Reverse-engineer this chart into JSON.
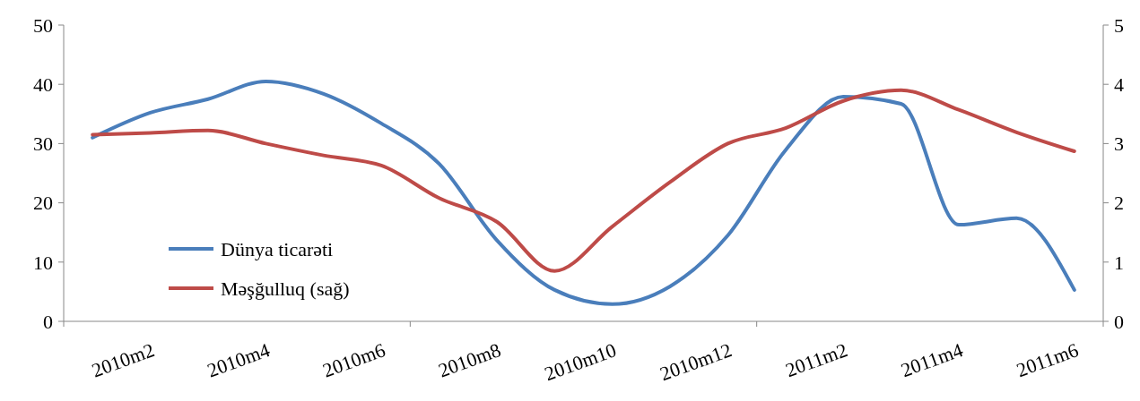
{
  "chart_data": {
    "type": "line",
    "categories": [
      null,
      "2010m2",
      null,
      "2010m4",
      null,
      "2010m6",
      null,
      "2010m8",
      null,
      "2010m10",
      null,
      "2010m12",
      null,
      "2011m2",
      null,
      "2011m4",
      null,
      "2011m6"
    ],
    "series": [
      {
        "name": "Dünya ticarəti",
        "color": "#4a7ebb",
        "values": [
          31,
          35.2,
          37.5,
          40.5,
          38.4,
          33.4,
          26.6,
          13.7,
          5.3,
          2.9,
          5.9,
          14.5,
          28.9,
          37.9,
          36.7,
          16.3,
          17.4,
          5.3
        ]
      },
      {
        "name": "Məşğulluq (sağ)",
        "color": "#be4b48",
        "axis": "y2",
        "values": [
          3.15,
          3.18,
          3.22,
          3.0,
          2.8,
          2.63,
          2.08,
          1.68,
          0.85,
          1.6,
          2.35,
          3.0,
          3.26,
          3.72,
          3.9,
          3.57,
          3.19,
          2.87
        ]
      }
    ],
    "ylim": [
      0,
      50
    ],
    "yticks": [
      0,
      10,
      20,
      30,
      40,
      50
    ],
    "y2lim": [
      0,
      5
    ],
    "y2ticks": [
      0,
      1,
      2,
      3,
      4,
      5
    ],
    "grid": false,
    "legend": "bottom left",
    "marker": "none",
    "line_style": "solid"
  }
}
